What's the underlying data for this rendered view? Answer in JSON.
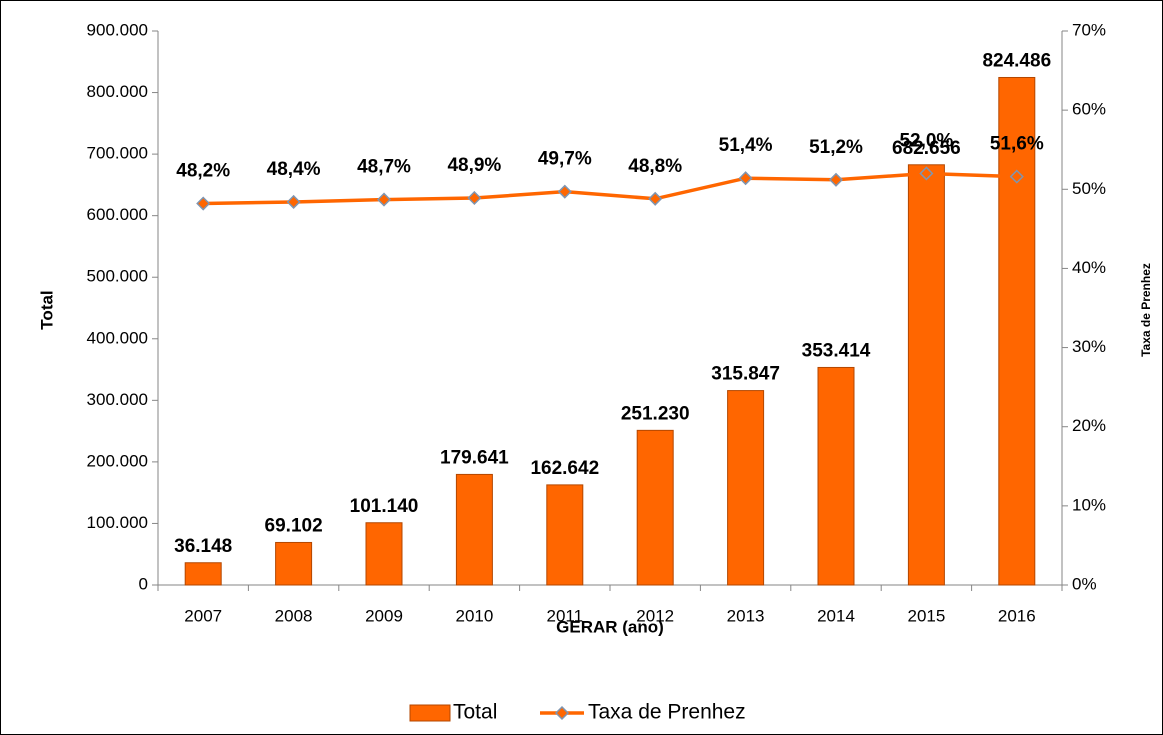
{
  "chart_data": {
    "type": "bar",
    "x_label": "GERAR (ano)",
    "y_label": "Total",
    "y2_label": "Taxa de Prenhez",
    "categories": [
      "2007",
      "2008",
      "2009",
      "2010",
      "2011",
      "2012",
      "2013",
      "2014",
      "2015",
      "2016"
    ],
    "series": [
      {
        "name": "Total",
        "color": "#ff6600",
        "values": [
          36148,
          69102,
          101140,
          179641,
          162642,
          251230,
          315847,
          353414,
          682656,
          824486
        ],
        "value_labels": [
          "36.148",
          "69.102",
          "101.140",
          "179.641",
          "162.642",
          "251.230",
          "315.847",
          "353.414",
          "682.656",
          "824.486"
        ]
      },
      {
        "name": "Taxa de Prenhez",
        "color": "#ff6600",
        "axis": "y2",
        "values": [
          48.2,
          48.4,
          48.7,
          48.9,
          49.7,
          48.8,
          51.4,
          51.2,
          52.0,
          51.6
        ],
        "value_labels": [
          "48,2%",
          "48,4%",
          "48,7%",
          "48,9%",
          "49,7%",
          "48,8%",
          "51,4%",
          "51,2%",
          "52,0%",
          "51,6%"
        ]
      }
    ],
    "ylim": [
      0,
      900000
    ],
    "yticks": [
      0,
      {
        "value": 100000,
        "label": "100.000"
      },
      {
        "value": 200000,
        "label": "200.000"
      },
      {
        "value": 300000,
        "label": "300.000"
      },
      {
        "value": 400000,
        "label": "400.000"
      },
      {
        "value": 500000,
        "label": "500.000"
      },
      {
        "value": 600000,
        "label": "600.000"
      },
      {
        "value": 700000,
        "label": "700.000"
      },
      {
        "value": 800000,
        "label": "800.000"
      },
      {
        "value": 900000,
        "label": "900.000"
      }
    ],
    "y2lim": [
      0,
      70
    ],
    "y2ticks": [
      {
        "value": 0,
        "label": "0%"
      },
      {
        "value": 10,
        "label": "10%"
      },
      {
        "value": 20,
        "label": "20%"
      },
      {
        "value": 30,
        "label": "30%"
      },
      {
        "value": 40,
        "label": "40%"
      },
      {
        "value": 50,
        "label": "50%"
      },
      {
        "value": 60,
        "label": "60%"
      },
      {
        "value": 70,
        "label": "70%"
      }
    ],
    "grid": false,
    "legend": "bottom"
  }
}
